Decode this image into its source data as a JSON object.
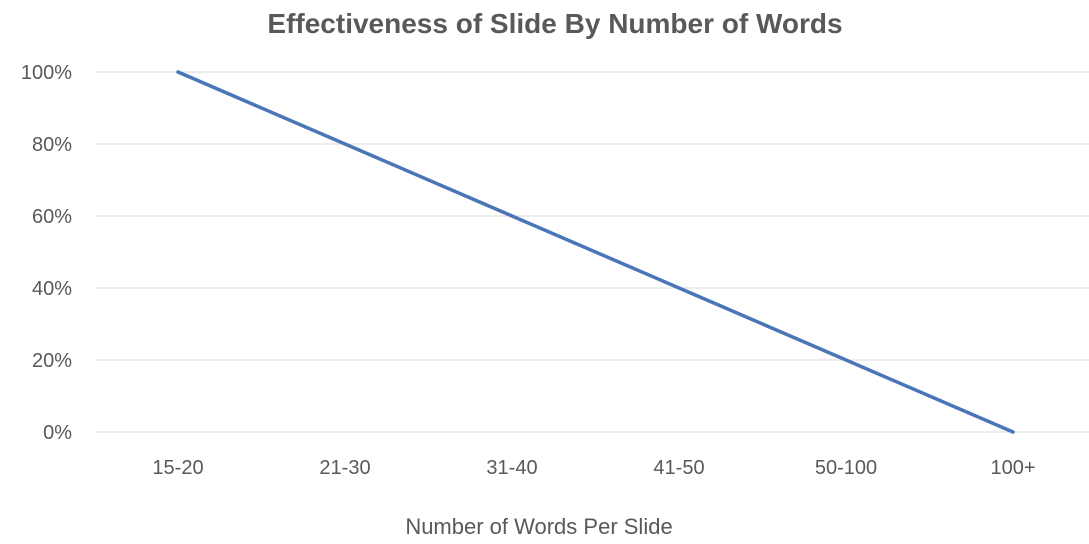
{
  "chart_data": {
    "type": "line",
    "title": "Effectiveness of Slide By Number of Words",
    "xlabel": "Number of Words Per Slide",
    "ylabel": "",
    "categories": [
      "15-20",
      "21-30",
      "31-40",
      "41-50",
      "50-100",
      "100+"
    ],
    "series": [
      {
        "values": [
          100,
          80,
          60,
          40,
          20,
          0
        ],
        "color": "#4a76b8"
      }
    ],
    "ylim": [
      0,
      100
    ],
    "yticks": [
      0,
      20,
      40,
      60,
      80,
      100
    ],
    "ytick_labels": [
      "0%",
      "20%",
      "40%",
      "60%",
      "80%",
      "100%"
    ],
    "grid": true,
    "legend": "none",
    "colors": {
      "text": "#595959",
      "grid": "#d9d9d9"
    }
  }
}
